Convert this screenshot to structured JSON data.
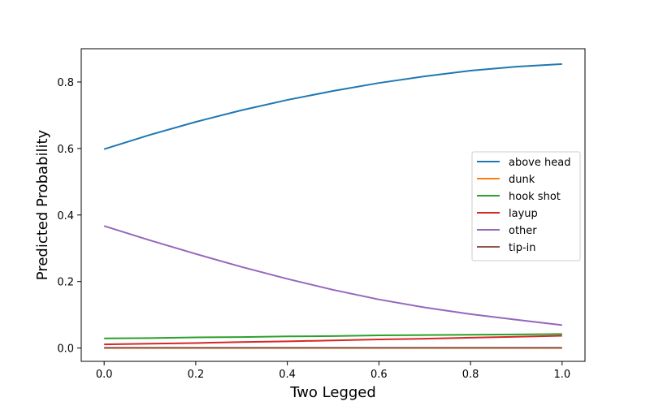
{
  "chart_data": {
    "type": "line",
    "title": "",
    "xlabel": "Two Legged",
    "ylabel": "Predicted Probability",
    "xlim": [
      -0.05,
      1.05
    ],
    "ylim": [
      -0.04,
      0.9
    ],
    "xticks": [
      0.0,
      0.2,
      0.4,
      0.6,
      0.8,
      1.0
    ],
    "xtick_labels": [
      "0.0",
      "0.2",
      "0.4",
      "0.6",
      "0.8",
      "1.0"
    ],
    "yticks": [
      0.0,
      0.2,
      0.4,
      0.6,
      0.8
    ],
    "ytick_labels": [
      "0.0",
      "0.2",
      "0.4",
      "0.6",
      "0.8"
    ],
    "grid": false,
    "legend_position": "center-right",
    "x": [
      0.0,
      0.1,
      0.2,
      0.3,
      0.4,
      0.5,
      0.6,
      0.7,
      0.8,
      0.9,
      1.0
    ],
    "series": [
      {
        "name": "above head",
        "color": "#1f77b4",
        "values": [
          0.598,
          0.641,
          0.68,
          0.715,
          0.746,
          0.773,
          0.797,
          0.817,
          0.834,
          0.846,
          0.854
        ]
      },
      {
        "name": "dunk",
        "color": "#ff7f0e",
        "values": [
          0.0,
          0.0,
          0.0,
          0.0,
          0.0,
          0.0,
          0.0,
          0.0,
          0.0,
          0.0,
          0.0
        ]
      },
      {
        "name": "hook shot",
        "color": "#2ca02c",
        "values": [
          0.029,
          0.03,
          0.032,
          0.033,
          0.035,
          0.036,
          0.038,
          0.039,
          0.04,
          0.041,
          0.042
        ]
      },
      {
        "name": "layup",
        "color": "#d62728",
        "values": [
          0.011,
          0.013,
          0.015,
          0.018,
          0.02,
          0.023,
          0.026,
          0.028,
          0.031,
          0.034,
          0.037
        ]
      },
      {
        "name": "other",
        "color": "#9467bd",
        "values": [
          0.367,
          0.324,
          0.283,
          0.244,
          0.208,
          0.175,
          0.146,
          0.122,
          0.102,
          0.085,
          0.069
        ]
      },
      {
        "name": "tip-in",
        "color": "#8c564b",
        "values": [
          0.001,
          0.001,
          0.001,
          0.001,
          0.001,
          0.001,
          0.001,
          0.001,
          0.001,
          0.001,
          0.001
        ]
      }
    ]
  }
}
